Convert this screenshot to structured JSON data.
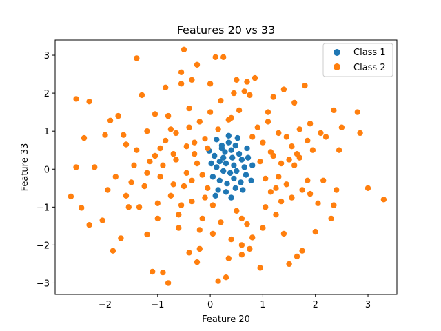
{
  "chart_data": {
    "type": "scatter",
    "title": "Features 20 vs 33",
    "xlabel": "Feature 20",
    "ylabel": "Feature 33",
    "xlim": [
      -2.95,
      3.55
    ],
    "ylim": [
      -3.3,
      3.4
    ],
    "xticks": [
      -2,
      -1,
      0,
      1,
      2,
      3
    ],
    "yticks": [
      -3,
      -2,
      -1,
      0,
      1,
      2,
      3
    ],
    "grid": false,
    "legend_position": "top-right",
    "series": [
      {
        "name": "Class 1",
        "color": "#1f77b4",
        "points": [
          [
            0.12,
            0.78
          ],
          [
            0.22,
            0.55
          ],
          [
            0.35,
            0.7
          ],
          [
            0.48,
            0.62
          ],
          [
            0.55,
            0.4
          ],
          [
            0.08,
            0.35
          ],
          [
            0.18,
            0.2
          ],
          [
            0.3,
            0.15
          ],
          [
            0.42,
            0.3
          ],
          [
            0.6,
            0.25
          ],
          [
            0.65,
            0.05
          ],
          [
            0.5,
            -0.05
          ],
          [
            0.38,
            -0.1
          ],
          [
            0.25,
            -0.05
          ],
          [
            0.12,
            0.05
          ],
          [
            0.05,
            -0.2
          ],
          [
            0.18,
            -0.3
          ],
          [
            0.32,
            -0.38
          ],
          [
            0.45,
            -0.25
          ],
          [
            0.58,
            -0.35
          ],
          [
            0.68,
            -0.15
          ],
          [
            0.72,
            0.3
          ],
          [
            0.28,
            0.45
          ],
          [
            0.4,
            0.5
          ],
          [
            0.15,
            -0.55
          ],
          [
            0.3,
            -0.6
          ],
          [
            0.48,
            -0.5
          ],
          [
            0.62,
            -0.55
          ],
          [
            0.22,
            0.62
          ],
          [
            0.02,
            0.15
          ],
          [
            0.52,
            0.82
          ],
          [
            0.35,
            0.88
          ],
          [
            0.1,
            -0.7
          ],
          [
            0.4,
            -0.75
          ],
          [
            0.7,
            0.55
          ],
          [
            0.8,
            0.1
          ],
          [
            0.78,
            -0.3
          ],
          [
            -0.02,
            0.48
          ],
          [
            0.25,
            0.3
          ],
          [
            0.45,
            0.1
          ]
        ]
      },
      {
        "name": "Class 2",
        "color": "#ff7f0e",
        "points": [
          [
            -2.65,
            -0.72
          ],
          [
            -2.55,
            1.85
          ],
          [
            -2.3,
            1.78
          ],
          [
            -2.45,
            -1.02
          ],
          [
            -2.4,
            0.82
          ],
          [
            -2.3,
            -1.47
          ],
          [
            -2.55,
            0.05
          ],
          [
            -2.2,
            0.05
          ],
          [
            -2.05,
            -1.35
          ],
          [
            -1.95,
            -0.55
          ],
          [
            -1.9,
            1.28
          ],
          [
            -1.85,
            -2.15
          ],
          [
            -1.7,
            -1.82
          ],
          [
            -1.6,
            0.65
          ],
          [
            -1.5,
            -0.35
          ],
          [
            -1.4,
            2.92
          ],
          [
            -1.35,
            -1.0
          ],
          [
            -1.3,
            1.95
          ],
          [
            -1.2,
            -1.72
          ],
          [
            -1.15,
            0.2
          ],
          [
            -1.1,
            -2.7
          ],
          [
            -1.05,
            1.45
          ],
          [
            -1.0,
            -0.9
          ],
          [
            -0.95,
            0.55
          ],
          [
            -0.9,
            -2.72
          ],
          [
            -0.85,
            2.15
          ],
          [
            -0.8,
            -3.0
          ],
          [
            -0.75,
            1.05
          ],
          [
            -0.7,
            -0.4
          ],
          [
            -0.65,
            0.95
          ],
          [
            -0.6,
            -1.55
          ],
          [
            -0.55,
            2.55
          ],
          [
            -0.5,
            3.15
          ],
          [
            -0.45,
            -0.1
          ],
          [
            -0.4,
            1.6
          ],
          [
            -0.35,
            -0.85
          ],
          [
            -0.3,
            0.4
          ],
          [
            -0.25,
            -2.45
          ],
          [
            -0.2,
            1.25
          ],
          [
            -0.15,
            -1.3
          ],
          [
            -0.1,
            0.8
          ],
          [
            -0.05,
            -0.5
          ],
          [
            0.0,
            2.25
          ],
          [
            0.05,
            -1.7
          ],
          [
            0.1,
            2.95
          ],
          [
            0.15,
            -2.95
          ],
          [
            0.2,
            1.8
          ],
          [
            0.25,
            2.95
          ],
          [
            0.3,
            -2.85
          ],
          [
            0.35,
            1.3
          ],
          [
            0.4,
            -1.85
          ],
          [
            0.45,
            2.0
          ],
          [
            0.5,
            -1.1
          ],
          [
            0.55,
            1.55
          ],
          [
            0.6,
            -2.0
          ],
          [
            0.65,
            2.05
          ],
          [
            0.7,
            -1.45
          ],
          [
            0.75,
            1.95
          ],
          [
            0.8,
            -1.8
          ],
          [
            0.85,
            2.4
          ],
          [
            0.9,
            1.1
          ],
          [
            0.95,
            -2.6
          ],
          [
            1.0,
            0.7
          ],
          [
            1.05,
            -1.0
          ],
          [
            1.1,
            1.5
          ],
          [
            1.15,
            -0.6
          ],
          [
            1.2,
            1.9
          ],
          [
            1.25,
            -1.2
          ],
          [
            1.3,
            0.95
          ],
          [
            1.35,
            -0.85
          ],
          [
            1.4,
            2.1
          ],
          [
            1.45,
            -0.4
          ],
          [
            1.5,
            -2.5
          ],
          [
            1.55,
            0.6
          ],
          [
            1.6,
            1.75
          ],
          [
            1.65,
            -2.3
          ],
          [
            1.7,
            0.3
          ],
          [
            1.75,
            -2.15
          ],
          [
            1.8,
            2.2
          ],
          [
            1.85,
            -0.3
          ],
          [
            1.9,
            1.2
          ],
          [
            1.95,
            0.5
          ],
          [
            2.0,
            -1.65
          ],
          [
            2.05,
            -0.9
          ],
          [
            2.1,
            0.95
          ],
          [
            2.15,
            -0.3
          ],
          [
            2.2,
            0.85
          ],
          [
            2.3,
            -1.3
          ],
          [
            2.35,
            -0.95
          ],
          [
            2.4,
            -0.55
          ],
          [
            2.35,
            1.55
          ],
          [
            2.45,
            0.5
          ],
          [
            2.5,
            1.1
          ],
          [
            2.8,
            1.5
          ],
          [
            2.85,
            0.95
          ],
          [
            3.0,
            -0.5
          ],
          [
            3.3,
            -0.8
          ],
          [
            -1.75,
            1.4
          ],
          [
            -1.65,
            0.9
          ],
          [
            -1.55,
            -1.0
          ],
          [
            -1.45,
            0.1
          ],
          [
            -1.25,
            -0.45
          ],
          [
            -1.05,
            0.35
          ],
          [
            -0.95,
            -0.2
          ],
          [
            -0.85,
            0.75
          ],
          [
            -0.75,
            -0.7
          ],
          [
            -0.65,
            0.25
          ],
          [
            -0.55,
            -0.95
          ],
          [
            -0.45,
            0.6
          ],
          [
            -0.35,
            -0.3
          ],
          [
            -0.25,
            0.15
          ],
          [
            -0.15,
            -0.15
          ],
          [
            -0.05,
            0.55
          ],
          [
            0.05,
            -0.95
          ],
          [
            0.15,
            1.05
          ],
          [
            0.95,
            0.2
          ],
          [
            1.05,
            -0.25
          ],
          [
            1.15,
            0.45
          ],
          [
            1.25,
            -0.5
          ],
          [
            1.35,
            0.15
          ],
          [
            1.45,
            0.85
          ],
          [
            1.55,
            -0.75
          ],
          [
            1.65,
            0.4
          ],
          [
            1.75,
            -0.55
          ],
          [
            1.85,
            0.75
          ],
          [
            -1.2,
            1.0
          ],
          [
            -1.0,
            -1.3
          ],
          [
            -0.8,
            1.4
          ],
          [
            -0.6,
            -1.2
          ],
          [
            -0.4,
            1.1
          ],
          [
            -0.2,
            -1.6
          ],
          [
            0.0,
            1.5
          ],
          [
            0.2,
            -1.4
          ],
          [
            0.4,
            1.35
          ],
          [
            0.6,
            -1.3
          ],
          [
            0.8,
            0.85
          ],
          [
            1.0,
            -1.55
          ],
          [
            1.2,
            0.35
          ],
          [
            1.4,
            -1.7
          ],
          [
            1.6,
            0.1
          ],
          [
            -2.0,
            0.9
          ],
          [
            -1.8,
            -0.2
          ],
          [
            -1.6,
            -0.7
          ],
          [
            -1.4,
            0.5
          ],
          [
            -1.2,
            -0.1
          ],
          [
            -0.9,
            0.1
          ],
          [
            -0.7,
            0.4
          ],
          [
            -0.5,
            -0.45
          ],
          [
            -0.3,
            0.7
          ],
          [
            -0.1,
            -0.75
          ],
          [
            1.1,
            1.25
          ],
          [
            1.3,
            -0.2
          ],
          [
            1.5,
            0.25
          ],
          [
            1.7,
            1.05
          ],
          [
            1.9,
            -0.65
          ],
          [
            -0.35,
            2.35
          ],
          [
            -0.25,
            2.75
          ],
          [
            -0.55,
            2.25
          ],
          [
            0.5,
            2.35
          ],
          [
            0.7,
            2.3
          ],
          [
            -0.4,
            -2.2
          ],
          [
            -0.2,
            -2.1
          ],
          [
            0.35,
            -2.35
          ],
          [
            0.6,
            -2.25
          ],
          [
            0.75,
            -2.1
          ]
        ]
      }
    ]
  }
}
